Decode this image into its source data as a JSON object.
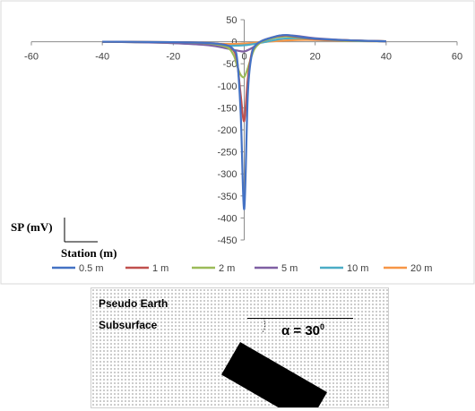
{
  "chart_data": {
    "type": "line",
    "title": "",
    "xlabel": "Station (m)",
    "ylabel": "SP (mV)",
    "xlim": [
      -60,
      60
    ],
    "ylim": [
      -450,
      50
    ],
    "xticks": [
      -60,
      -40,
      -20,
      0,
      20,
      40,
      60
    ],
    "yticks": [
      50,
      0,
      -50,
      -100,
      -150,
      -200,
      -250,
      -300,
      -350,
      -400,
      -450
    ],
    "grid": false,
    "legend": "bottom",
    "series": [
      {
        "name": "0.5 m",
        "color": "#4472C4",
        "x": [
          -40,
          -20,
          -10,
          -5,
          -3,
          -2,
          -1,
          0,
          1,
          2,
          3,
          5,
          8,
          10,
          12,
          15,
          20,
          30,
          40
        ],
        "y": [
          0,
          -1,
          -3,
          -8,
          -18,
          -40,
          -160,
          -380,
          -120,
          -35,
          -10,
          2,
          10,
          14,
          15,
          12,
          7,
          3,
          1
        ]
      },
      {
        "name": "1 m",
        "color": "#C0504D",
        "x": [
          -40,
          -20,
          -10,
          -5,
          -3,
          -2,
          -1,
          0,
          1,
          2,
          3,
          5,
          8,
          10,
          12,
          15,
          20,
          30,
          40
        ],
        "y": [
          0,
          -1,
          -3,
          -8,
          -20,
          -45,
          -120,
          -180,
          -85,
          -30,
          -10,
          2,
          10,
          13,
          14,
          11,
          6,
          3,
          1
        ]
      },
      {
        "name": "2 m",
        "color": "#9BBB59",
        "x": [
          -40,
          -20,
          -10,
          -5,
          -3,
          -2,
          -1,
          0,
          1,
          2,
          3,
          5,
          8,
          10,
          12,
          15,
          20,
          30,
          40
        ],
        "y": [
          0,
          -1,
          -4,
          -12,
          -30,
          -55,
          -75,
          -80,
          -60,
          -35,
          -15,
          0,
          8,
          11,
          12,
          10,
          6,
          2,
          1
        ]
      },
      {
        "name": "5 m",
        "color": "#7F5FA3",
        "x": [
          -40,
          -30,
          -20,
          -10,
          -5,
          -2,
          0,
          2,
          5,
          8,
          10,
          12,
          15,
          20,
          30,
          40
        ],
        "y": [
          0,
          -1,
          -3,
          -8,
          -15,
          -20,
          -22,
          -15,
          0,
          10,
          14,
          15,
          13,
          8,
          3,
          1
        ]
      },
      {
        "name": "10 m",
        "color": "#4BACC6",
        "x": [
          -40,
          -30,
          -20,
          -10,
          -5,
          0,
          5,
          10,
          15,
          20,
          30,
          40
        ],
        "y": [
          0,
          -1,
          -3,
          -7,
          -9,
          -8,
          -2,
          6,
          8,
          6,
          3,
          1
        ]
      },
      {
        "name": "20 m",
        "color": "#F79646",
        "x": [
          -40,
          -30,
          -20,
          -10,
          -5,
          0,
          5,
          10,
          15,
          20,
          30,
          40
        ],
        "y": [
          0,
          -1,
          -2,
          -4,
          -5,
          -4,
          -1,
          2,
          4,
          4,
          2,
          1
        ]
      }
    ]
  },
  "model": {
    "label_line1": "Pseudo Earth",
    "label_line2": "Subsurface",
    "dip_angle_label": "α = 30",
    "dip_angle_degree": "0"
  }
}
